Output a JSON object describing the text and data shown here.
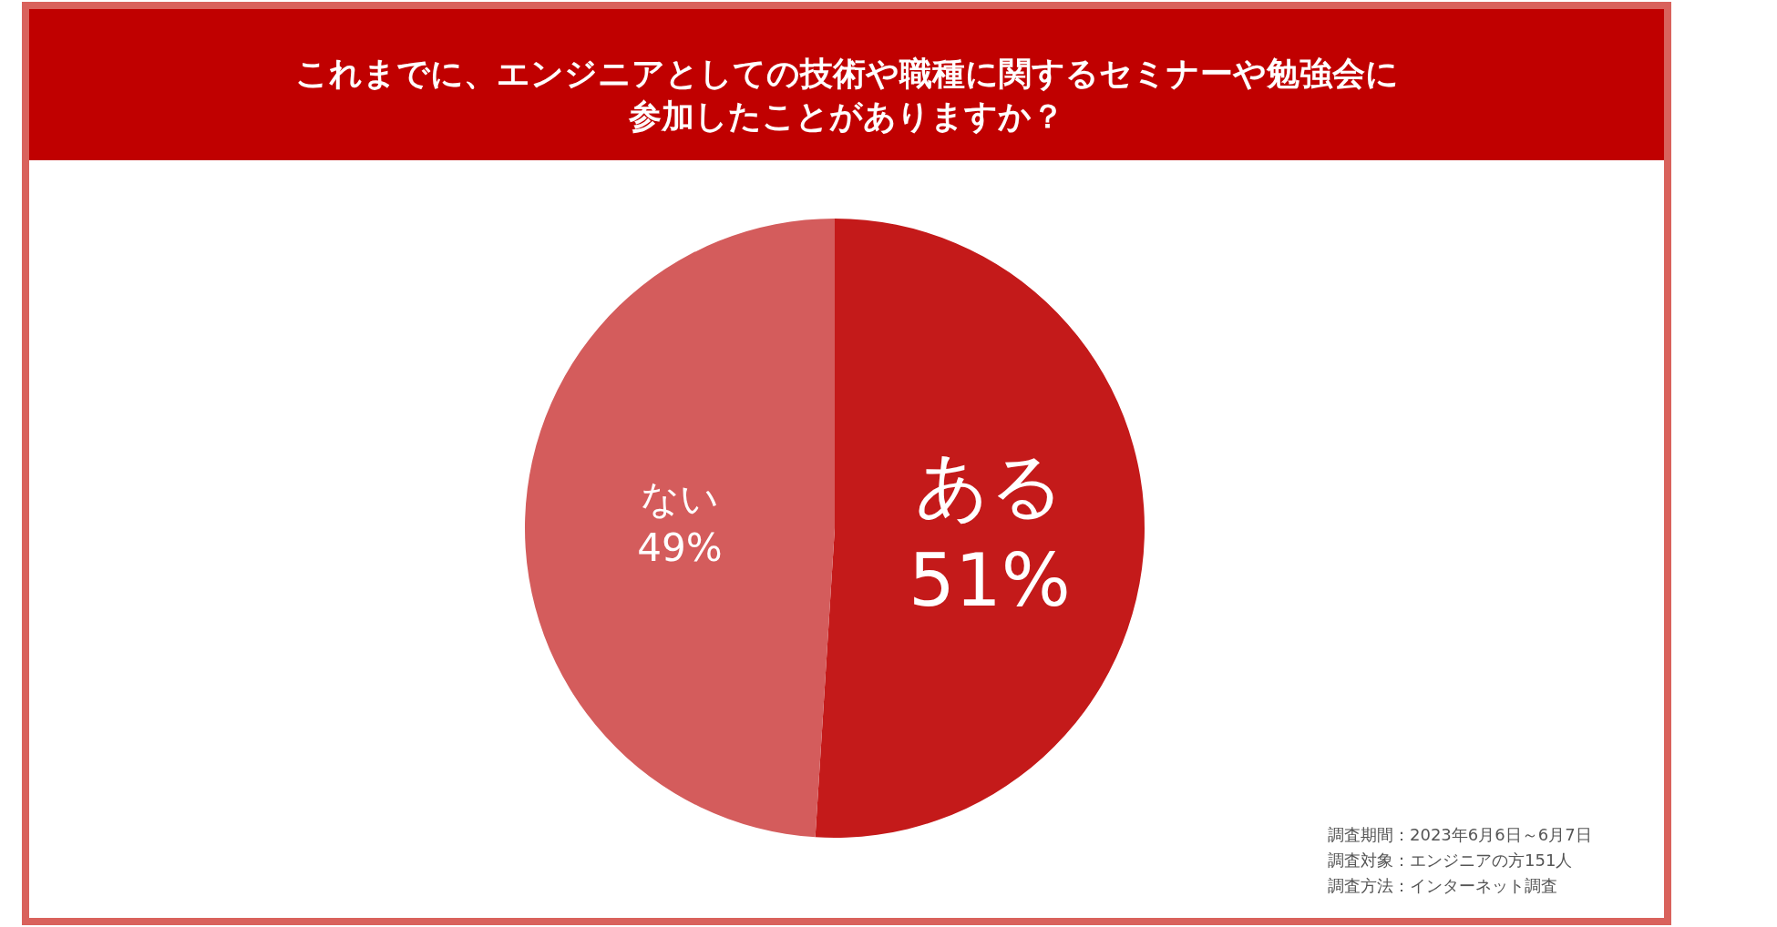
{
  "chart_data": {
    "type": "pie",
    "title": "これまでに、エンジニアとしての技術や職種に関するセミナーや勉強会に参加したことがありますか？",
    "categories": [
      "ある",
      "ない"
    ],
    "values": [
      51,
      49
    ],
    "value_labels": [
      "51%",
      "49%"
    ],
    "colors": [
      "#c41a1a",
      "#d45c5c"
    ],
    "legend": false,
    "annotations": [
      "調査期間：2023年6月6日～6月7日",
      "調査対象：エンジニアの方151人",
      "調査方法：インターネット調査"
    ]
  }
}
